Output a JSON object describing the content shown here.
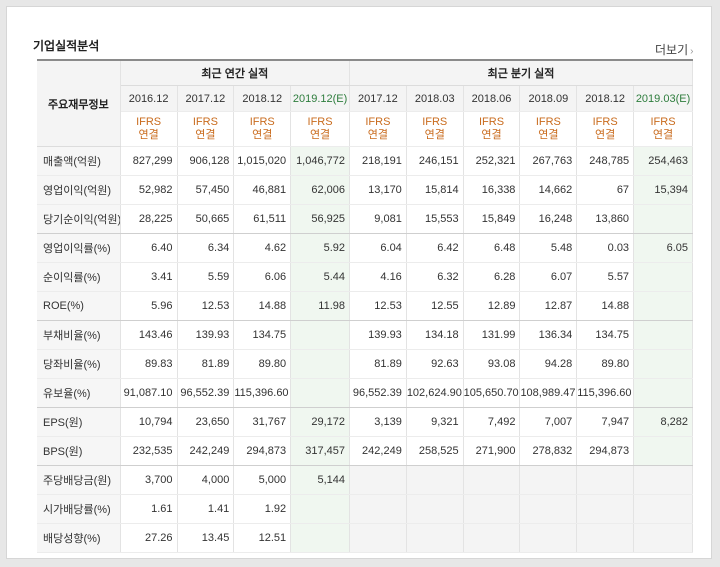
{
  "section_title": "기업실적분석",
  "more_link": "더보기",
  "table": {
    "row_header": "주요재무정보",
    "group_annual": "최근 연간 실적",
    "group_quarter": "최근 분기 실적",
    "annual_periods": [
      "2016.12",
      "2017.12",
      "2018.12",
      "2019.12(E)"
    ],
    "quarter_periods": [
      "2017.12",
      "2018.03",
      "2018.06",
      "2018.09",
      "2018.12",
      "2019.03(E)"
    ],
    "basis_line1": "IFRS",
    "basis_line2": "연결",
    "rows": [
      {
        "label": "매출액(억원)",
        "annual": [
          "827,299",
          "906,128",
          "1,015,020",
          "1,046,772"
        ],
        "quarter": [
          "218,191",
          "246,151",
          "252,321",
          "267,763",
          "248,785",
          "254,463"
        ]
      },
      {
        "label": "영업이익(억원)",
        "annual": [
          "52,982",
          "57,450",
          "46,881",
          "62,006"
        ],
        "quarter": [
          "13,170",
          "15,814",
          "16,338",
          "14,662",
          "67",
          "15,394"
        ]
      },
      {
        "label": "당기순이익(억원)",
        "annual": [
          "28,225",
          "50,665",
          "61,511",
          "56,925"
        ],
        "quarter": [
          "9,081",
          "15,553",
          "15,849",
          "16,248",
          "13,860",
          ""
        ]
      },
      {
        "label": "영업이익률(%)",
        "annual": [
          "6.40",
          "6.34",
          "4.62",
          "5.92"
        ],
        "quarter": [
          "6.04",
          "6.42",
          "6.48",
          "5.48",
          "0.03",
          "6.05"
        ]
      },
      {
        "label": "순이익률(%)",
        "annual": [
          "3.41",
          "5.59",
          "6.06",
          "5.44"
        ],
        "quarter": [
          "4.16",
          "6.32",
          "6.28",
          "6.07",
          "5.57",
          ""
        ]
      },
      {
        "label": "ROE(%)",
        "annual": [
          "5.96",
          "12.53",
          "14.88",
          "11.98"
        ],
        "quarter": [
          "12.53",
          "12.55",
          "12.89",
          "12.87",
          "14.88",
          ""
        ]
      },
      {
        "label": "부채비율(%)",
        "annual": [
          "143.46",
          "139.93",
          "134.75",
          ""
        ],
        "quarter": [
          "139.93",
          "134.18",
          "131.99",
          "136.34",
          "134.75",
          ""
        ]
      },
      {
        "label": "당좌비율(%)",
        "annual": [
          "89.83",
          "81.89",
          "89.80",
          ""
        ],
        "quarter": [
          "81.89",
          "92.63",
          "93.08",
          "94.28",
          "89.80",
          ""
        ]
      },
      {
        "label": "유보율(%)",
        "annual": [
          "91,087.10",
          "96,552.39",
          "115,396.60",
          ""
        ],
        "quarter": [
          "96,552.39",
          "102,624.90",
          "105,650.70",
          "108,989.47",
          "115,396.60",
          ""
        ]
      },
      {
        "label": "EPS(원)",
        "annual": [
          "10,794",
          "23,650",
          "31,767",
          "29,172"
        ],
        "quarter": [
          "3,139",
          "9,321",
          "7,492",
          "7,007",
          "7,947",
          "8,282"
        ]
      },
      {
        "label": "BPS(원)",
        "annual": [
          "232,535",
          "242,249",
          "294,873",
          "317,457"
        ],
        "quarter": [
          "242,249",
          "258,525",
          "271,900",
          "278,832",
          "294,873",
          ""
        ]
      },
      {
        "label": "주당배당금(원)",
        "annual": [
          "3,700",
          "4,000",
          "5,000",
          "5,144"
        ],
        "quarter": [
          "",
          "",
          "",
          "",
          "",
          ""
        ]
      },
      {
        "label": "시가배당률(%)",
        "annual": [
          "1.61",
          "1.41",
          "1.92",
          ""
        ],
        "quarter": [
          "",
          "",
          "",
          "",
          "",
          ""
        ]
      },
      {
        "label": "배당성향(%)",
        "annual": [
          "27.26",
          "13.45",
          "12.51",
          ""
        ],
        "quarter": [
          "",
          "",
          "",
          "",
          "",
          ""
        ]
      }
    ],
    "group_separators_after_rows": [
      2,
      5,
      8,
      10
    ]
  },
  "colors": {
    "ifrs_text": "#c96b1d",
    "estimate_text": "#2e7d3d",
    "estimate_bg": "#f0f7f0"
  }
}
